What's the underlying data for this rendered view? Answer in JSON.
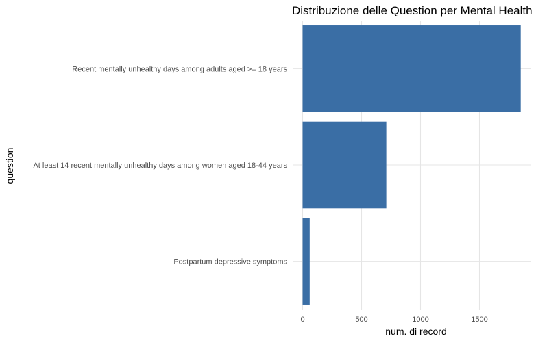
{
  "chart_data": {
    "type": "bar",
    "orientation": "horizontal",
    "title": "Distribuzione delle Question per Mental Health",
    "xlabel": "num. di record",
    "ylabel": "question",
    "categories": [
      "Recent mentally unhealthy days among adults aged >= 18 years",
      "At least 14 recent mentally unhealthy days among women aged 18-44 years",
      "Postpartum depressive symptoms"
    ],
    "values": [
      1850,
      710,
      60
    ],
    "xlim": [
      0,
      1900
    ],
    "x_ticks": [
      0,
      500,
      1000,
      1500
    ],
    "x_tick_labels": [
      "0",
      "500",
      "1000",
      "1500"
    ],
    "bar_color": "#3a6ea5",
    "grid": true
  }
}
